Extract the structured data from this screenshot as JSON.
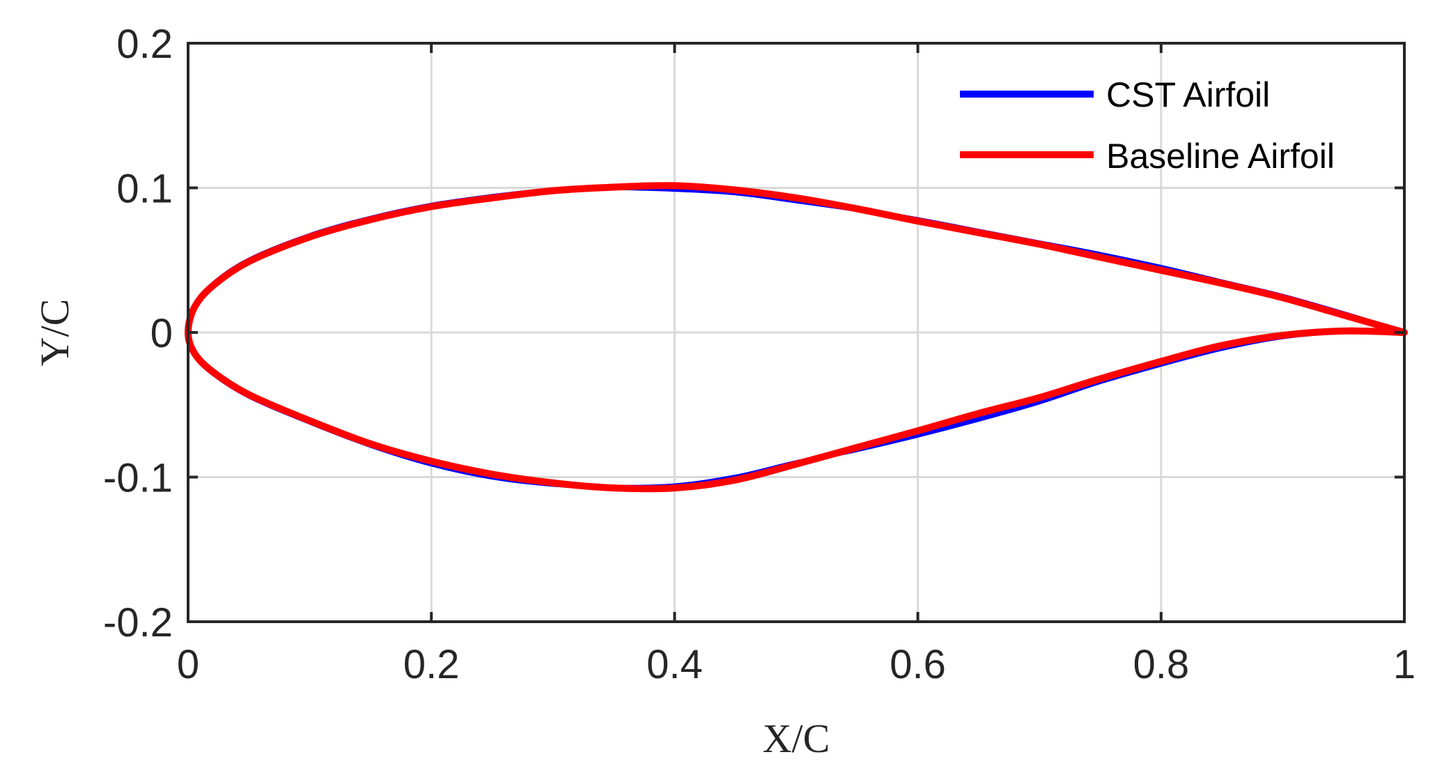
{
  "chart_data": {
    "type": "line",
    "title": "",
    "xlabel": "X/C",
    "ylabel": "Y/C",
    "xlim": [
      0,
      1
    ],
    "ylim": [
      -0.2,
      0.2
    ],
    "xticks": [
      0,
      0.2,
      0.4,
      0.6,
      0.8,
      1
    ],
    "yticks": [
      -0.2,
      -0.1,
      0,
      0.1,
      0.2
    ],
    "xtick_labels": [
      "0",
      "0.2",
      "0.4",
      "0.6",
      "0.8",
      "1"
    ],
    "ytick_labels": [
      "-0.2",
      "-0.1",
      "0",
      "0.1",
      "0.2"
    ],
    "grid": true,
    "legend_position": "top-right",
    "series": [
      {
        "name": "CST Airfoil",
        "color": "#0000ff",
        "upper": {
          "x": [
            0,
            0.005,
            0.02,
            0.05,
            0.1,
            0.15,
            0.2,
            0.25,
            0.3,
            0.35,
            0.4,
            0.45,
            0.5,
            0.55,
            0.6,
            0.65,
            0.7,
            0.75,
            0.8,
            0.85,
            0.9,
            0.95,
            1
          ],
          "y": [
            0,
            0.018,
            0.033,
            0.05,
            0.067,
            0.079,
            0.088,
            0.094,
            0.0985,
            0.1,
            0.099,
            0.0965,
            0.091,
            0.085,
            0.078,
            0.07,
            0.062,
            0.054,
            0.045,
            0.035,
            0.025,
            0.013,
            0
          ]
        },
        "lower": {
          "x": [
            0,
            0.005,
            0.02,
            0.05,
            0.1,
            0.15,
            0.2,
            0.25,
            0.3,
            0.35,
            0.4,
            0.45,
            0.5,
            0.55,
            0.6,
            0.65,
            0.7,
            0.75,
            0.8,
            0.85,
            0.9,
            0.95,
            1
          ],
          "y": [
            0,
            -0.015,
            -0.028,
            -0.044,
            -0.062,
            -0.078,
            -0.091,
            -0.1,
            -0.105,
            -0.107,
            -0.106,
            -0.1,
            -0.09,
            -0.081,
            -0.071,
            -0.06,
            -0.048,
            -0.034,
            -0.022,
            -0.011,
            -0.003,
            0.0005,
            0
          ]
        }
      },
      {
        "name": "Baseline Airfoil",
        "color": "#ff0000",
        "upper": {
          "x": [
            0,
            0.005,
            0.02,
            0.05,
            0.1,
            0.15,
            0.2,
            0.25,
            0.3,
            0.35,
            0.4,
            0.45,
            0.5,
            0.55,
            0.6,
            0.65,
            0.7,
            0.75,
            0.8,
            0.85,
            0.9,
            0.95,
            1
          ],
          "y": [
            0,
            0.017,
            0.032,
            0.049,
            0.066,
            0.078,
            0.087,
            0.093,
            0.098,
            0.1005,
            0.1015,
            0.0985,
            0.093,
            0.0855,
            0.077,
            0.069,
            0.061,
            0.052,
            0.043,
            0.034,
            0.024,
            0.012,
            0
          ]
        },
        "lower": {
          "x": [
            0,
            0.005,
            0.02,
            0.05,
            0.1,
            0.15,
            0.2,
            0.25,
            0.3,
            0.35,
            0.4,
            0.45,
            0.5,
            0.55,
            0.6,
            0.65,
            0.7,
            0.75,
            0.8,
            0.85,
            0.9,
            0.95,
            1
          ],
          "y": [
            0,
            -0.014,
            -0.027,
            -0.043,
            -0.061,
            -0.077,
            -0.089,
            -0.098,
            -0.104,
            -0.1075,
            -0.1075,
            -0.102,
            -0.091,
            -0.0795,
            -0.068,
            -0.056,
            -0.045,
            -0.032,
            -0.02,
            -0.009,
            -0.002,
            0.001,
            0
          ]
        }
      }
    ]
  }
}
